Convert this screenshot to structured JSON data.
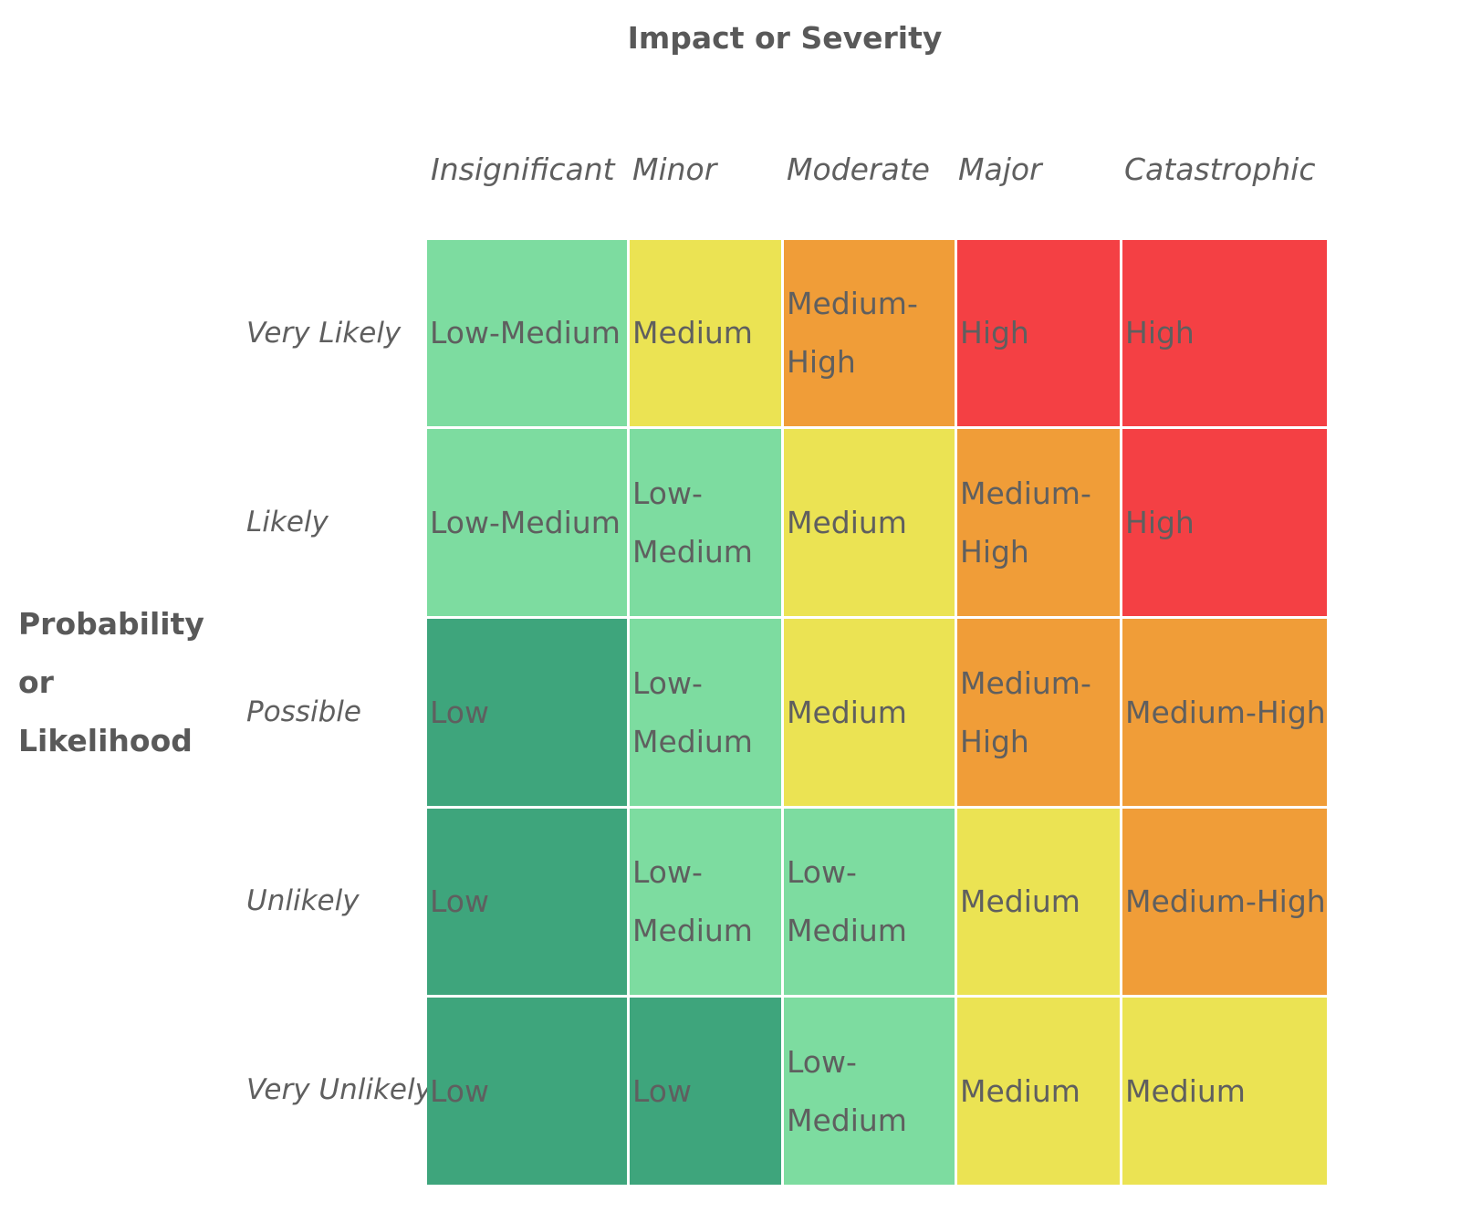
{
  "chart_data": {
    "type": "heatmap",
    "title": "Impact or Severity",
    "xlabel": "Impact or Severity",
    "ylabel": "Probability or Likelihood",
    "x_categories": [
      "Insignificant",
      "Minor",
      "Moderate",
      "Major",
      "Catastrophic"
    ],
    "y_categories": [
      "Very Likely",
      "Likely",
      "Possible",
      "Unlikely",
      "Very Unlikely"
    ],
    "level_colors": {
      "Low": "#3ea57c",
      "Low-Medium": "#7ddca0",
      "Medium": "#ebe353",
      "Medium-High": "#f09d38",
      "High": "#f44044"
    },
    "cells": [
      [
        "Low-Medium",
        "Medium",
        "Medium-High",
        "High",
        "High"
      ],
      [
        "Low-Medium",
        "Low-Medium",
        "Medium",
        "Medium-High",
        "High"
      ],
      [
        "Low",
        "Low-Medium",
        "Medium",
        "Medium-High",
        "Medium-High"
      ],
      [
        "Low",
        "Low-Medium",
        "Low-Medium",
        "Medium",
        "Medium-High"
      ],
      [
        "Low",
        "Low",
        "Low-Medium",
        "Medium",
        "Medium"
      ]
    ]
  }
}
